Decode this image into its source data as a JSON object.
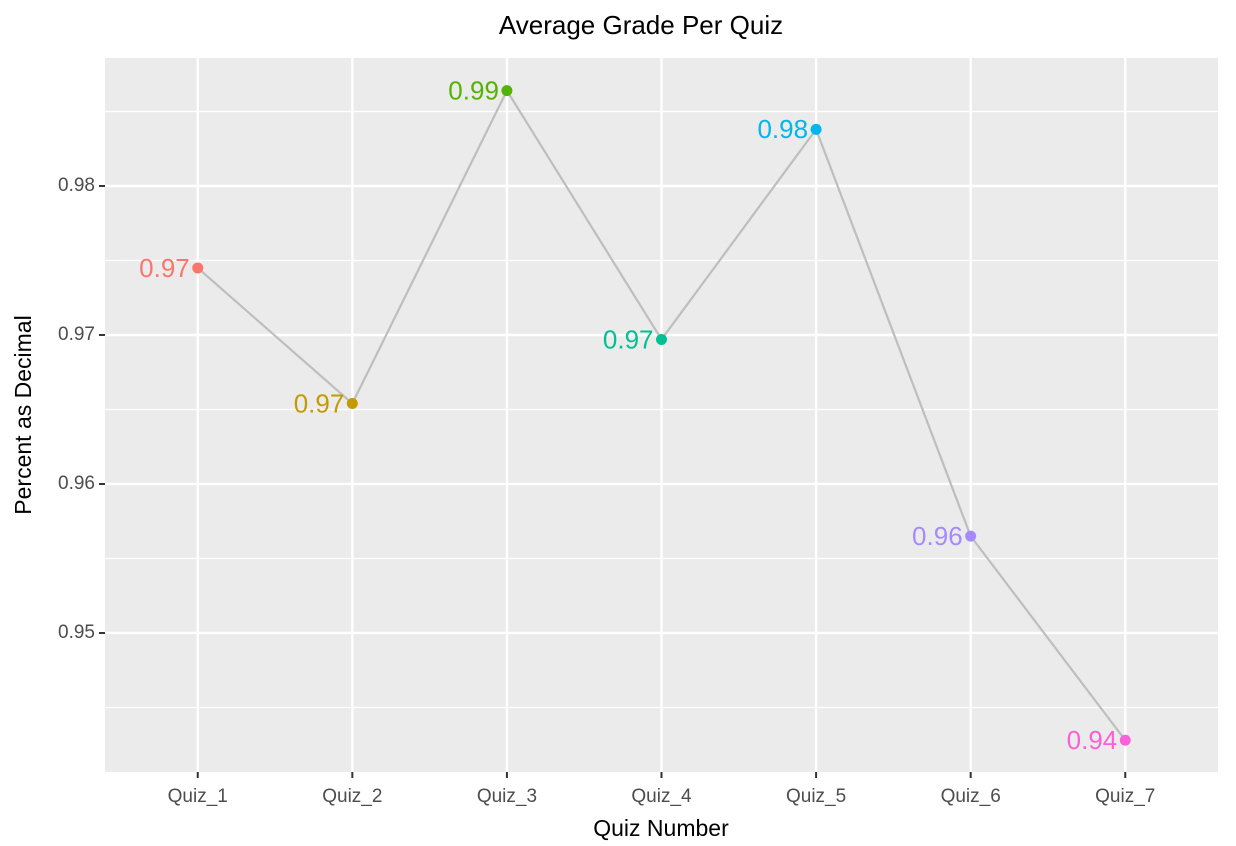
{
  "chart_data": {
    "type": "line",
    "title": "Average Grade Per Quiz",
    "x_label": "Quiz Number",
    "y_label": "Percent as Decimal",
    "categories": [
      "Quiz_1",
      "Quiz_2",
      "Quiz_3",
      "Quiz_4",
      "Quiz_5",
      "Quiz_6",
      "Quiz_7"
    ],
    "values": [
      0.9745,
      0.9654,
      0.9864,
      0.9697,
      0.9838,
      0.9565,
      0.9428
    ],
    "value_labels": [
      "0.97",
      "0.97",
      "0.99",
      "0.97",
      "0.98",
      "0.96",
      "0.94"
    ],
    "point_colors": [
      "#f8766d",
      "#c49a00",
      "#53b400",
      "#00c094",
      "#00b6eb",
      "#a58aff",
      "#fb61d7"
    ],
    "line_color": "#bebebe",
    "ylim": [
      0.94067,
      0.98859
    ],
    "yticks": [
      0.95,
      0.96,
      0.97,
      0.98
    ],
    "minor_yticks": [
      0.945,
      0.955,
      0.965,
      0.975,
      0.985
    ],
    "grid": true
  }
}
